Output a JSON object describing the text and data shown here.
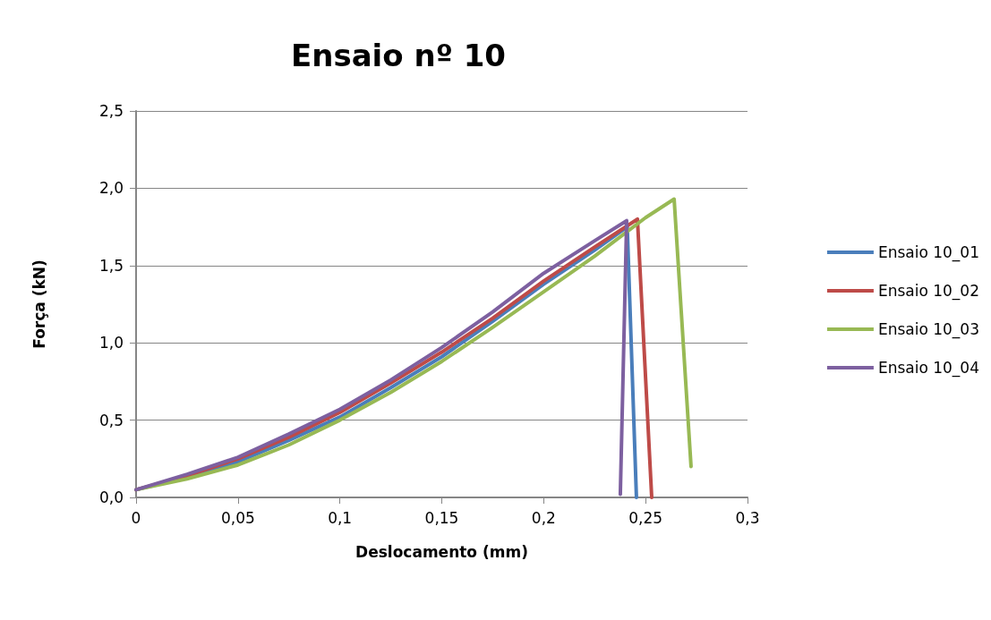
{
  "chart_data": {
    "type": "line",
    "title": "Ensaio nº 10",
    "xlabel": "Deslocamento (mm)",
    "ylabel": "Força (kN)",
    "xlim": [
      0,
      0.3
    ],
    "xticks": [
      {
        "value": 0,
        "label": "0"
      },
      {
        "value": 0.05,
        "label": "0,05"
      },
      {
        "value": 0.1,
        "label": "0,1"
      },
      {
        "value": 0.15,
        "label": "0,15"
      },
      {
        "value": 0.2,
        "label": "0,2"
      },
      {
        "value": 0.25,
        "label": "0,25"
      },
      {
        "value": 0.3,
        "label": "0,3"
      }
    ],
    "ylim": [
      0,
      2.5
    ],
    "yticks": [
      {
        "value": 0,
        "label": "0,0"
      },
      {
        "value": 0.5,
        "label": "0,5"
      },
      {
        "value": 1,
        "label": "1,0"
      },
      {
        "value": 1.5,
        "label": "1,5"
      },
      {
        "value": 2,
        "label": "2,0"
      },
      {
        "value": 2.5,
        "label": "2,5"
      }
    ],
    "grid": "y",
    "legend": "right",
    "marker": "none",
    "line_style": "solid",
    "series": [
      {
        "name": "Ensaio 10_01",
        "color": "#4a7ebb",
        "x": [
          0,
          0.025,
          0.05,
          0.075,
          0.1,
          0.125,
          0.15,
          0.175,
          0.2,
          0.225,
          0.241,
          0.2455
        ],
        "values": [
          0.05,
          0.13,
          0.23,
          0.37,
          0.52,
          0.71,
          0.91,
          1.14,
          1.38,
          1.6,
          1.75,
          0
        ]
      },
      {
        "name": "Ensaio 10_02",
        "color": "#be4b48",
        "x": [
          0,
          0.025,
          0.05,
          0.075,
          0.1,
          0.125,
          0.15,
          0.175,
          0.2,
          0.225,
          0.246,
          0.253
        ],
        "values": [
          0.05,
          0.14,
          0.25,
          0.39,
          0.55,
          0.74,
          0.94,
          1.16,
          1.4,
          1.62,
          1.8,
          0
        ]
      },
      {
        "name": "Ensaio 10_03",
        "color": "#98b954",
        "x": [
          0,
          0.025,
          0.05,
          0.075,
          0.1,
          0.125,
          0.15,
          0.175,
          0.2,
          0.225,
          0.25,
          0.264,
          0.2723
        ],
        "values": [
          0.05,
          0.12,
          0.21,
          0.34,
          0.5,
          0.68,
          0.88,
          1.1,
          1.33,
          1.56,
          1.81,
          1.93,
          0.2
        ]
      },
      {
        "name": "Ensaio 10_04",
        "color": "#7d60a0",
        "x": [
          0,
          0.025,
          0.05,
          0.075,
          0.1,
          0.125,
          0.15,
          0.175,
          0.2,
          0.225,
          0.2407,
          0.2376
        ],
        "values": [
          0.05,
          0.15,
          0.26,
          0.41,
          0.57,
          0.76,
          0.97,
          1.2,
          1.45,
          1.66,
          1.79,
          0.02
        ]
      }
    ]
  }
}
